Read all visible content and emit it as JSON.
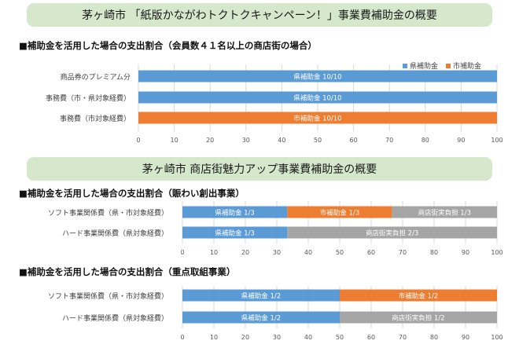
{
  "colors": {
    "pref": "#5b9bd5",
    "city": "#ed7d31",
    "shop": "#a5a5a5"
  },
  "banner1": "茅ヶ崎市 「紙版かながわトクトクキャンペーン！」事業費補助金の概要",
  "heading1": "■補助金を活用した場合の支出割合（会員数４１名以上の商店街の場合）",
  "legend": {
    "pref": "県補助金",
    "city": "市補助金"
  },
  "banner2": "茅ヶ崎市 商店街魅力アップ事業費補助金の概要",
  "heading2": "■補助金を活用した場合の支出割合（賑わい創出事業）",
  "heading3": "■補助金を活用した場合の支出割合（重点取組事業）",
  "chart_data": [
    {
      "type": "bar",
      "orientation": "horizontal",
      "stacked": true,
      "categories": [
        "商品券のプレミアム分",
        "事務費（市・県対象経費）",
        "事務費（市対象経費）"
      ],
      "series": [
        {
          "name": "県補助金",
          "color": "#5b9bd5",
          "values": [
            100,
            100,
            0
          ],
          "labels": [
            "県補助金 10/10",
            "県補助金 10/10",
            ""
          ]
        },
        {
          "name": "市補助金",
          "color": "#ed7d31",
          "values": [
            0,
            0,
            100
          ],
          "labels": [
            "",
            "",
            "市補助金 10/10"
          ]
        }
      ],
      "xlim": [
        0,
        100
      ],
      "xticks": [
        0,
        10,
        20,
        30,
        40,
        50,
        60,
        70,
        80,
        90,
        100
      ],
      "legend": "top-right",
      "grid": true
    },
    {
      "type": "bar",
      "orientation": "horizontal",
      "stacked": true,
      "categories": [
        "ソフト事業関係費（県・市対象経費）",
        "ハード事業関係費（県対象経費）"
      ],
      "series": [
        {
          "color": "#5b9bd5",
          "values": [
            33.33,
            33.33
          ],
          "labels": [
            "県補助金 1/3",
            "県補助金 1/3"
          ]
        },
        {
          "color": "#ed7d31",
          "values": [
            33.33,
            0
          ],
          "labels": [
            "市補助金 1/3",
            ""
          ]
        },
        {
          "color": "#a5a5a5",
          "values": [
            33.34,
            66.67
          ],
          "labels": [
            "商店街実負担 1/3",
            "商店街実負担 2/3"
          ]
        }
      ],
      "xlim": [
        0,
        100
      ],
      "xticks": [
        0,
        10,
        20,
        30,
        40,
        50,
        60,
        70,
        80,
        90,
        100
      ],
      "grid": true
    },
    {
      "type": "bar",
      "orientation": "horizontal",
      "stacked": true,
      "categories": [
        "ソフト事業関係費（県・市対象経費）",
        "ハード事業関係費（県対象経費）"
      ],
      "series": [
        {
          "color": "#5b9bd5",
          "values": [
            50,
            50
          ],
          "labels": [
            "県補助金 1/2",
            "県補助金 1/2"
          ]
        },
        {
          "color": "#ed7d31",
          "values": [
            50,
            0
          ],
          "labels": [
            "市補助金 1/2",
            ""
          ]
        },
        {
          "color": "#a5a5a5",
          "values": [
            0,
            50
          ],
          "labels": [
            "",
            "商店街実負担 1/2"
          ]
        }
      ],
      "xlim": [
        0,
        100
      ],
      "xticks": [
        0,
        10,
        20,
        30,
        40,
        50,
        60,
        70,
        80,
        90,
        100
      ],
      "grid": true
    }
  ]
}
